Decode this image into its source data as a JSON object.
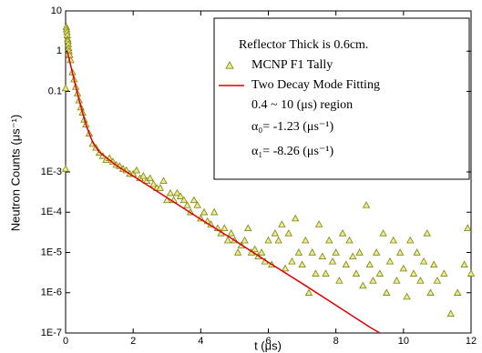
{
  "chart_data": {
    "type": "scatter",
    "xlabel": "t (μs)",
    "ylabel": "Neutron Counts (μs⁻¹)",
    "legend_title": "Reflector Thick is 0.6cm.",
    "annotations": [
      "0.4 ~ 10 (μs) region",
      "α₀= -1.23 (μs⁻¹)",
      "α₁= -8.26 (μs⁻¹)"
    ],
    "xlim": [
      0,
      12
    ],
    "xticks": [
      0,
      2,
      4,
      6,
      8,
      10,
      12
    ],
    "ylim": [
      1e-07,
      10
    ],
    "yscale": "log",
    "yticks": [
      10,
      1,
      0.1,
      {
        "value": 0.001,
        "label": "1E-3"
      },
      {
        "value": 0.0001,
        "label": "1E-4"
      },
      {
        "value": 1e-05,
        "label": "1E-5"
      },
      {
        "value": 1e-06,
        "label": "1E-6"
      },
      {
        "value": 1e-07,
        "label": "1E-7"
      }
    ],
    "series": [
      {
        "name": "MCNP F1 Tally",
        "type": "scatter",
        "color": "#808000",
        "fill": "#e8ec9a",
        "x": [
          0,
          0,
          0.02,
          0.03,
          0.04,
          0.05,
          0.06,
          0.07,
          0.08,
          0.09,
          0.1,
          0.12,
          0.15,
          0.2,
          0.25,
          0.3,
          0.35,
          0.4,
          0.45,
          0.5,
          0.55,
          0.6,
          0.7,
          0.8,
          0.9,
          1.0,
          1.1,
          1.2,
          1.3,
          1.4,
          1.5,
          1.6,
          1.7,
          1.8,
          1.9,
          2.0,
          2.1,
          2.2,
          2.3,
          2.4,
          2.5,
          2.6,
          2.7,
          2.8,
          2.9,
          3.0,
          3.1,
          3.2,
          3.3,
          3.4,
          3.5,
          3.6,
          3.7,
          3.8,
          3.9,
          4.0,
          4.1,
          4.2,
          4.3,
          4.4,
          4.5,
          4.6,
          4.7,
          4.8,
          4.9,
          5.0,
          5.1,
          5.2,
          5.3,
          5.4,
          5.5,
          5.6,
          5.7,
          5.8,
          5.9,
          6.0,
          6.1,
          6.2,
          6.3,
          6.4,
          6.5,
          6.6,
          6.7,
          6.8,
          6.9,
          7.0,
          7.1,
          7.2,
          7.3,
          7.4,
          7.5,
          7.6,
          7.7,
          7.8,
          7.9,
          8.0,
          8.1,
          8.2,
          8.3,
          8.4,
          8.5,
          8.6,
          8.7,
          8.8,
          8.9,
          9.0,
          9.1,
          9.2,
          9.3,
          9.4,
          9.5,
          9.6,
          9.7,
          9.8,
          9.9,
          10.0,
          10.1,
          10.2,
          10.3,
          10.4,
          10.5,
          10.6,
          10.7,
          10.8,
          10.9,
          11.0,
          11.2,
          11.4,
          11.6,
          11.8,
          11.9,
          12.0
        ],
        "values": [
          0.0012,
          0.12,
          4,
          3.5,
          3,
          2.5,
          2,
          1.8,
          1.5,
          1.2,
          1.0,
          0.8,
          0.6,
          0.3,
          0.2,
          0.13,
          0.09,
          0.06,
          0.04,
          0.03,
          0.02,
          0.015,
          0.009,
          0.005,
          0.004,
          0.003,
          0.0025,
          0.002,
          0.0022,
          0.0018,
          0.0015,
          0.0014,
          0.0012,
          0.0011,
          0.0009,
          0.0009,
          0.0011,
          0.0007,
          0.0008,
          0.0006,
          0.0007,
          0.0005,
          0.0004,
          0.0004,
          0.0006,
          0.0002,
          0.0003,
          0.0002,
          0.0003,
          0.00025,
          0.0002,
          0.00015,
          0.0001,
          0.0002,
          0.00015,
          7e-05,
          0.0001,
          6e-05,
          5e-05,
          0.0001,
          4e-05,
          3e-05,
          4e-05,
          2e-05,
          3e-05,
          2e-05,
          1e-05,
          1.5e-05,
          2e-05,
          4e-05,
          1e-05,
          1.2e-05,
          8e-06,
          1e-05,
          6e-06,
          2e-05,
          5e-06,
          3e-05,
          2e-05,
          5e-05,
          4e-06,
          3e-05,
          6e-06,
          7e-05,
          1e-05,
          5e-06,
          2e-05,
          1e-06,
          1e-05,
          3e-06,
          5e-05,
          8e-06,
          3e-06,
          2e-05,
          6e-06,
          1e-05,
          2e-06,
          3e-05,
          5e-06,
          2e-05,
          8e-06,
          3e-06,
          1e-05,
          1.5e-06,
          0.00015,
          5e-06,
          2e-06,
          1e-05,
          3e-06,
          3e-05,
          1e-06,
          6e-06,
          2e-05,
          2e-06,
          1e-05,
          4e-06,
          8e-07,
          2e-05,
          3e-06,
          1e-05,
          2e-06,
          6e-06,
          3e-05,
          1e-06,
          5e-06,
          2e-06,
          3e-06,
          3e-07,
          1e-06,
          5e-06,
          4e-05,
          3e-06
        ]
      },
      {
        "name": "Two Decay Mode Fitting",
        "type": "line",
        "color": "#e00000",
        "x": [
          0.05,
          0.1,
          0.2,
          0.3,
          0.4,
          0.6,
          0.8,
          1.0,
          1.5,
          2,
          3,
          4,
          5,
          6,
          7,
          8,
          9,
          9.3
        ],
        "values": [
          1.0,
          0.665,
          0.295,
          0.132,
          0.061,
          0.015,
          0.0055,
          0.0031,
          0.00146,
          0.00079,
          0.00023,
          6.7e-05,
          2e-05,
          5.7e-06,
          1.7e-06,
          4.9e-07,
          1.4e-07,
          1e-07
        ]
      }
    ],
    "grid": false
  }
}
